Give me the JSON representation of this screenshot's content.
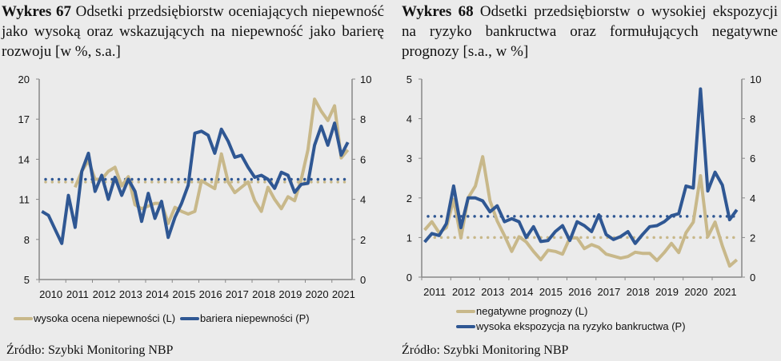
{
  "titles": [
    {
      "label": "Wykres 67",
      "text": " Odsetki przedsiębiorstw oceniających niepewność jako wysoką oraz wskazujących na niepewność jako barierę rozwoju [w %, s.a.]"
    },
    {
      "label": "Wykres 68",
      "text": " Odsetki przedsiębiorstw o wysokiej ekspozycji na ryzyko bankructwa oraz formułujących negatywne prognozy [s.a., w %]"
    }
  ],
  "source": "Źródło: Szybki Monitoring NBP",
  "colors": {
    "gold": "#c8b88a",
    "blue": "#2f5793",
    "axis": "#888888"
  },
  "chart_data": [
    {
      "type": "line",
      "x_start": 2010,
      "frequency": "quarterly",
      "x_ticks": [
        "2010",
        "2011",
        "2012",
        "2013",
        "2014",
        "2015",
        "2016",
        "2017",
        "2018",
        "2019",
        "2020",
        "2021"
      ],
      "y_left": {
        "ylim": [
          5,
          20
        ],
        "ticks": [
          "5",
          "8",
          "11",
          "14",
          "17",
          "20"
        ]
      },
      "y_right": {
        "ylim": [
          0,
          10
        ],
        "ticks": [
          "0",
          "2",
          "4",
          "6",
          "8",
          "10"
        ]
      },
      "series": [
        {
          "name": "wysoka ocena niepewności (L)",
          "axis": "left",
          "color": "#c8b88a",
          "start_index": 5,
          "values": [
            11.9,
            13.1,
            13.9,
            12.5,
            12.5,
            13.1,
            13.4,
            12.0,
            12.7,
            10.6,
            10.3,
            10.5,
            10.7,
            10.7,
            9.2,
            10.4,
            10.1,
            9.9,
            10.1,
            12.4,
            12.1,
            11.8,
            14.4,
            12.3,
            11.5,
            11.9,
            12.3,
            10.9,
            10.1,
            11.9,
            11.0,
            10.3,
            11.2,
            10.9,
            12.5,
            14.7,
            18.5,
            17.6,
            16.9,
            18.0,
            14.1,
            14.7
          ],
          "average": 12.3
        },
        {
          "name": "bariera niepewności (P)",
          "axis": "right",
          "color": "#2f5793",
          "start_index": 0,
          "values": [
            3.4,
            3.2,
            2.5,
            1.8,
            4.2,
            2.6,
            5.4,
            6.3,
            4.4,
            5.2,
            4.0,
            5.1,
            4.2,
            5.0,
            4.4,
            2.9,
            4.3,
            3.05,
            3.9,
            2.1,
            3.1,
            3.8,
            4.7,
            7.3,
            7.4,
            7.2,
            6.3,
            7.5,
            6.9,
            6.1,
            6.2,
            5.6,
            5.1,
            5.2,
            5.0,
            4.55,
            5.35,
            5.2,
            4.35,
            4.75,
            4.8,
            6.7,
            7.65,
            6.7,
            7.8,
            6.2,
            6.85
          ],
          "average": 5.0
        }
      ]
    },
    {
      "type": "line",
      "x_start": 2011,
      "frequency": "quarterly",
      "x_ticks": [
        "2011",
        "2012",
        "2013",
        "2014",
        "2015",
        "2016",
        "2017",
        "2018",
        "2019",
        "2020",
        "2021"
      ],
      "y_left": {
        "ylim": [
          0,
          5
        ],
        "ticks": [
          "0",
          "1",
          "2",
          "3",
          "4",
          "5"
        ]
      },
      "y_right": {
        "ylim": [
          0,
          10
        ],
        "ticks": [
          "0",
          "2",
          "4",
          "6",
          "8",
          "10"
        ]
      },
      "series": [
        {
          "name": "negatywne prognozy (L)",
          "axis": "left",
          "color": "#c8b88a",
          "start_index": 0,
          "values": [
            1.19,
            1.4,
            1.12,
            1.25,
            1.96,
            0.99,
            2.0,
            2.3,
            3.04,
            1.93,
            1.42,
            1.05,
            0.65,
            1.02,
            0.89,
            0.65,
            0.44,
            0.68,
            0.65,
            0.58,
            0.99,
            0.99,
            0.72,
            0.82,
            0.75,
            0.58,
            0.53,
            0.48,
            0.52,
            0.63,
            0.6,
            0.6,
            0.42,
            0.62,
            0.85,
            0.62,
            1.12,
            1.39,
            2.56,
            1.02,
            1.39,
            0.79,
            0.28,
            0.44
          ],
          "average": 1.0
        },
        {
          "name": "wysoka ekspozycja na ryzyko bankructwa (P)",
          "axis": "right",
          "color": "#2f5793",
          "start_index": 0,
          "values": [
            1.77,
            2.2,
            2.1,
            2.7,
            4.6,
            2.5,
            4.0,
            4.0,
            3.85,
            3.3,
            3.6,
            2.8,
            2.95,
            2.8,
            2.0,
            2.55,
            1.8,
            1.85,
            2.3,
            2.6,
            1.85,
            2.8,
            2.6,
            2.3,
            3.15,
            2.15,
            1.9,
            2.05,
            2.3,
            1.7,
            2.15,
            2.55,
            2.6,
            2.8,
            3.1,
            3.2,
            4.6,
            4.5,
            9.5,
            4.35,
            5.3,
            4.65,
            2.9,
            3.4
          ],
          "average": 3.07
        }
      ]
    }
  ]
}
